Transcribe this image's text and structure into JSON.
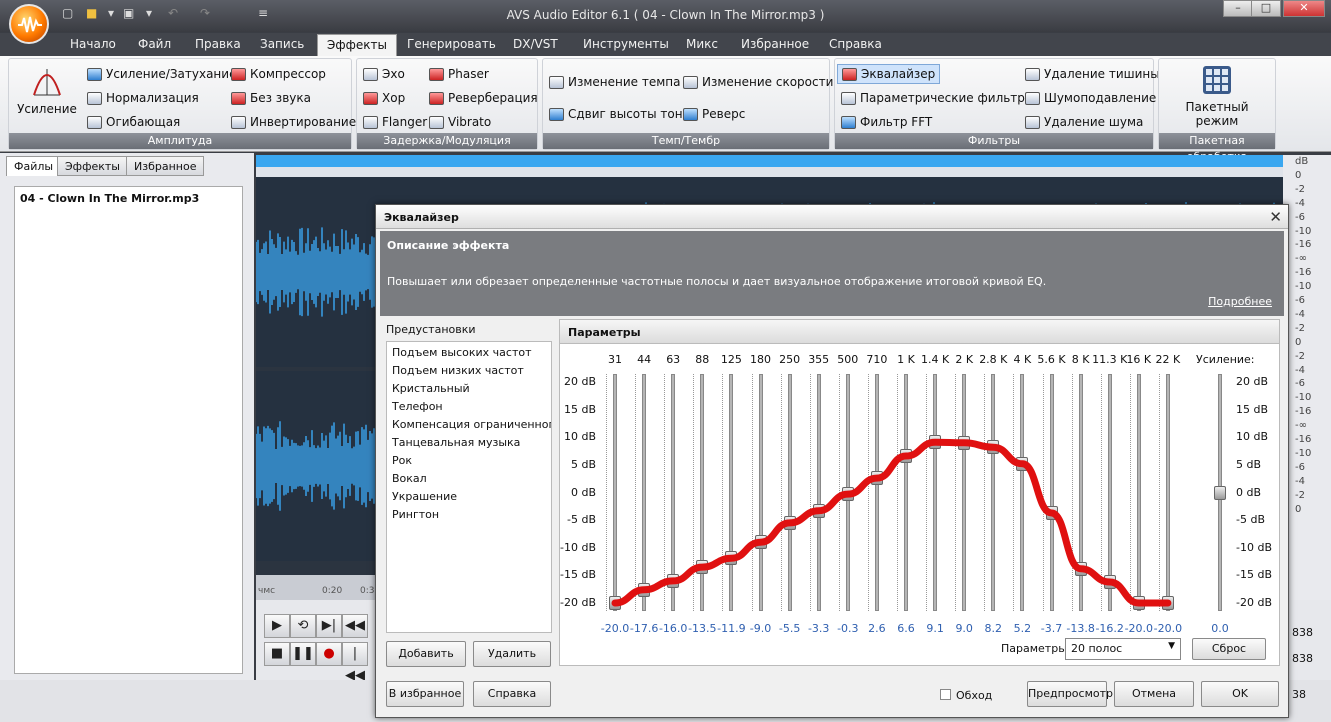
{
  "app": {
    "title": "AVS Audio Editor 6.1  ( 04 - Clown In The Mirror.mp3 )",
    "window_buttons": [
      "–",
      "□",
      "✕"
    ]
  },
  "menu": [
    "Начало",
    "Файл",
    "Правка",
    "Запись",
    "Эффекты",
    "Генерировать",
    "DX/VST",
    "Инструменты",
    "Микс",
    "Избранное",
    "Справка"
  ],
  "ribbon": {
    "amplitude": {
      "label": "Амплитуда",
      "big": "Усиление",
      "items": [
        "Усиление/Затухание",
        "Нормализация",
        "Огибающая",
        "Компрессор",
        "Без звука",
        "Инвертирование"
      ]
    },
    "delay": {
      "label": "Задержка/Модуляция",
      "items": [
        "Эхо",
        "Хор",
        "Flanger",
        "Phaser",
        "Реверберация",
        "Vibrato"
      ]
    },
    "tempo": {
      "label": "Темп/Тембр",
      "items": [
        "Изменение темпа",
        "Изменение скорости",
        "Сдвиг высоты тона",
        "Реверс"
      ]
    },
    "filters": {
      "label": "Фильтры",
      "items": [
        "Эквалайзер",
        "Параметрические фильтры",
        "Фильтр FFT",
        "Удаление тишины",
        "Шумоподавление",
        "Удаление шума"
      ]
    },
    "batch": {
      "label": "Пакетная обработка",
      "big": "Пакетный режим"
    }
  },
  "left_panel": {
    "tabs": [
      "Файлы",
      "Эффекты",
      "Избранное"
    ],
    "file": "04 - Clown In The Mirror.mp3"
  },
  "scale": [
    "dB",
    "0",
    "-2",
    "-4",
    "-6",
    "-10",
    "-16",
    "-∞",
    "-16",
    "-10",
    "-6",
    "-4",
    "-2",
    "0",
    "-2",
    "-4",
    "-6",
    "-10",
    "-16",
    "-∞",
    "-16",
    "-10",
    "-6",
    "-4",
    "-2",
    "0"
  ],
  "timeline": [
    "чмс",
    "0:20",
    "0:3"
  ],
  "right_values": [
    "838",
    "838",
    "38"
  ],
  "dialog": {
    "title": "Эквалайзер",
    "desc_heading": "Описание эффекта",
    "desc_text": "Повышает или обрезает определенные частотные полосы и дает визуальное отображение итоговой кривой EQ.",
    "more_link": "Подробнее",
    "presets_label": "Предустановки",
    "presets": [
      "Подъем высоких частот",
      "Подъем низких частот",
      "Кристальный",
      "Телефон",
      "Компенсация ограниченного г",
      "Танцевальная музыка",
      "Рок",
      "Вокал",
      "Украшение",
      "Рингтон"
    ],
    "add": "Добавить",
    "delete": "Удалить",
    "params_heading": "Параметры",
    "freqs": [
      "31",
      "44",
      "63",
      "88",
      "125",
      "180",
      "250",
      "355",
      "500",
      "710",
      "1 K",
      "1.4 K",
      "2 K",
      "2.8 K",
      "4 K",
      "5.6 K",
      "8 K",
      "11.3 K",
      "16 K",
      "22 K"
    ],
    "gain_label": "Усиление:",
    "db_scale": [
      "20 dB",
      "15 dB",
      "10 dB",
      "5 dB",
      "0 dB",
      "-5 dB",
      "-10 dB",
      "-15 dB",
      "-20 dB"
    ],
    "band_values": [
      "-20.0",
      "-17.6",
      "-16.0",
      "-13.5",
      "-11.9",
      "-9.0",
      "-5.5",
      "-3.3",
      "-0.3",
      "2.6",
      "6.6",
      "9.1",
      "9.0",
      "8.2",
      "5.2",
      "-3.7",
      "-13.8",
      "-16.2",
      "-20.0",
      "-20.0"
    ],
    "gain_value": "0.0",
    "params_label": "Параметры",
    "bands_select": "20 полос",
    "reset": "Сброс",
    "favorites": "В избранное",
    "help": "Справка",
    "bypass": "Обход",
    "preview": "Предпросмотр",
    "cancel": "Отмена",
    "ok": "OK"
  },
  "colors": {
    "curve": "#e01010",
    "wave": "#3aa0e8",
    "accent": "#ff7a00"
  }
}
